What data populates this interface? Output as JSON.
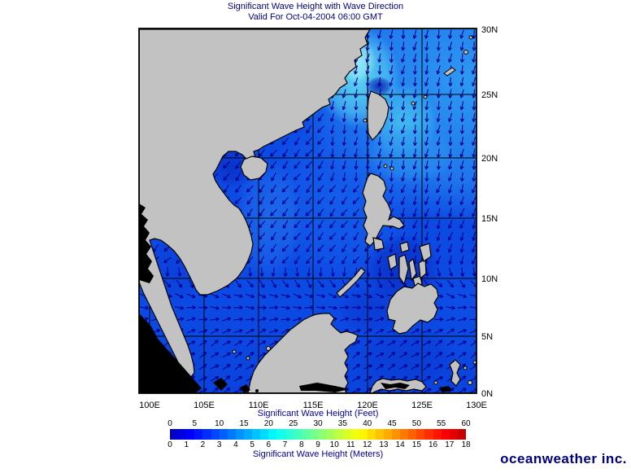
{
  "title": {
    "line1": "Significant Wave Height with Wave Direction",
    "line2": "Valid For Oct-04-2004 06:00 GMT"
  },
  "map": {
    "lon_ticks": [
      "100E",
      "105E",
      "110E",
      "115E",
      "120E",
      "125E",
      "130E"
    ],
    "lat_ticks": [
      "30N",
      "25N",
      "20N",
      "15N",
      "10N",
      "5N",
      "0N"
    ],
    "lon_range": [
      100,
      130
    ],
    "lat_range": [
      0,
      30
    ],
    "grid_interval_deg": 5,
    "projection": "mercator",
    "ocean_base_color": "#0c4ae4",
    "land_color": "#c2c2c2",
    "outside_domain_land_color": "#000000",
    "coastline_color": "#000000",
    "grid_color": "#000000",
    "arrow_color": "#000090",
    "wave_direction_regimes": {
      "north_of_12N_west": "toward SW",
      "taiwan_and_luzon_strait": "toward S",
      "8N_to_12N": "veering toward E",
      "south_of_5N": "toward NE"
    }
  },
  "colorbar": {
    "feet_caption": "Significant Wave Height (Feet)",
    "meters_caption": "Significant Wave Height (Meters)",
    "feet_ticks": [
      0,
      5,
      10,
      15,
      20,
      25,
      30,
      35,
      40,
      45,
      50,
      55,
      60
    ],
    "meter_ticks": [
      0,
      1,
      2,
      3,
      4,
      5,
      6,
      7,
      8,
      9,
      10,
      11,
      12,
      13,
      14,
      15,
      16,
      17,
      18
    ],
    "segments": 36,
    "min_meters": 0,
    "max_meters": 18,
    "palette": "jet (blue to red)"
  },
  "branding": {
    "logo_text": "oceanweather inc.",
    "logo_color": "#000080"
  },
  "colors": {
    "title_text": "#000080",
    "caption_text": "#0000a6",
    "tick_text": "#000000"
  }
}
